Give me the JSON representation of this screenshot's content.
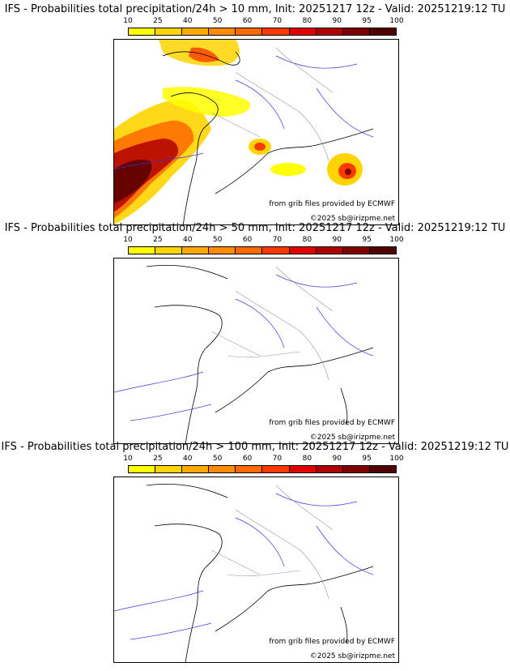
{
  "colorbar": {
    "ticks": [
      "10",
      "25",
      "40",
      "50",
      "60",
      "70",
      "80",
      "90",
      "95",
      "100"
    ],
    "colors": [
      "#ffff00",
      "#ffd400",
      "#ffaa00",
      "#ff8c00",
      "#ff6a00",
      "#ff3a00",
      "#e00000",
      "#b00000",
      "#800000",
      "#500000"
    ]
  },
  "panels": [
    {
      "title": "IFS - Probabilities total precipitation/24h > 10 mm, Init: 20251217 12z - Valid: 20251219:12 TU",
      "threshold_mm": 10,
      "credit_source": "from grib files provided by ECMWF",
      "credit_copyright": "©2025 sb@irizpme.net"
    },
    {
      "title": "IFS - Probabilities total precipitation/24h > 50 mm, Init: 20251217 12z - Valid: 20251219:12 TU",
      "threshold_mm": 50,
      "credit_source": "from grib files provided by ECMWF",
      "credit_copyright": "©2025 sb@irizpme.net"
    },
    {
      "title": "IFS - Probabilities total precipitation/24h > 100 mm, Init: 20251217 12z - Valid: 20251219:12 TU",
      "threshold_mm": 100,
      "credit_source": "from grib files provided by ECMWF",
      "credit_copyright": "©2025 sb@irizpme.net"
    }
  ]
}
